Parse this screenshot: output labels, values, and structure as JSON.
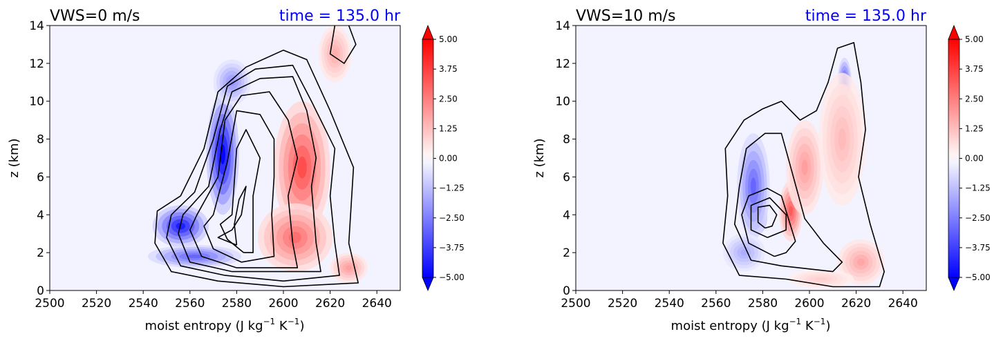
{
  "colorbar": {
    "vmin": -5.0,
    "vmax": 5.0,
    "tick_labels": [
      "5.00",
      "3.75",
      "2.50",
      "1.25",
      "0.00",
      "−1.25",
      "−2.50",
      "−3.75",
      "−5.00"
    ],
    "tick_values": [
      5.0,
      3.75,
      2.5,
      1.25,
      0.0,
      -1.25,
      -2.5,
      -3.75,
      -5.0
    ],
    "extend": "both",
    "colormap": "bwr",
    "colors": {
      "neg": "#0000ff",
      "mid": "#f3f3ff",
      "pos": "#ff0000"
    }
  },
  "chart_data": [
    {
      "type": "contour",
      "title_left": "VWS=0 m/s",
      "title_right": "time = 135.0 hr",
      "title_right_color": "#0000ff",
      "xlabel": "moist entropy (J kg",
      "xlabel_unit_exp1": "−1",
      "xlabel_unit_mid": " K",
      "xlabel_unit_exp2": "−1",
      "xlabel_unit_end": ")",
      "ylabel": "z (km)",
      "xlim": [
        2500,
        2650
      ],
      "ylim": [
        0,
        14
      ],
      "x_ticks": [
        2500,
        2520,
        2540,
        2560,
        2580,
        2600,
        2620,
        2640
      ],
      "y_ticks": [
        0,
        2,
        4,
        6,
        8,
        10,
        12,
        14
      ],
      "features": [
        {
          "sign": "neg",
          "x": 2574,
          "y": 7.2,
          "rx": 7,
          "ry": 3.2,
          "value": -5.0
        },
        {
          "sign": "neg",
          "x": 2556,
          "y": 3.4,
          "rx": 12,
          "ry": 1.1,
          "value": -4.5
        },
        {
          "sign": "neg",
          "x": 2562,
          "y": 1.8,
          "rx": 20,
          "ry": 0.6,
          "value": -3.0
        },
        {
          "sign": "neg",
          "x": 2578,
          "y": 11.0,
          "rx": 8,
          "ry": 1.2,
          "value": -2.0
        },
        {
          "sign": "pos",
          "x": 2608,
          "y": 6.5,
          "rx": 12,
          "ry": 3.5,
          "value": 3.5
        },
        {
          "sign": "pos",
          "x": 2605,
          "y": 2.8,
          "rx": 16,
          "ry": 1.8,
          "value": 2.8
        },
        {
          "sign": "pos",
          "x": 2622,
          "y": 12.5,
          "rx": 7,
          "ry": 1.5,
          "value": 1.5
        },
        {
          "sign": "pos",
          "x": 2628,
          "y": 1.2,
          "rx": 8,
          "ry": 0.8,
          "value": 1.8
        }
      ],
      "contours": [
        [
          [
            2572,
            0.5
          ],
          [
            2552,
            1.0
          ],
          [
            2545,
            2.5
          ],
          [
            2546,
            4.2
          ],
          [
            2556,
            5.0
          ],
          [
            2566,
            7.5
          ],
          [
            2572,
            10.5
          ],
          [
            2584,
            11.8
          ],
          [
            2600,
            12.7
          ],
          [
            2610,
            12.2
          ],
          [
            2620,
            9.5
          ],
          [
            2630,
            6.5
          ],
          [
            2628,
            2.5
          ],
          [
            2632,
            0.4
          ],
          [
            2600,
            0.2
          ],
          [
            2572,
            0.5
          ]
        ],
        [
          [
            2575,
            0.8
          ],
          [
            2556,
            1.3
          ],
          [
            2550,
            2.8
          ],
          [
            2552,
            4.0
          ],
          [
            2562,
            5.2
          ],
          [
            2570,
            8.0
          ],
          [
            2576,
            10.8
          ],
          [
            2588,
            11.7
          ],
          [
            2604,
            11.9
          ],
          [
            2612,
            10.0
          ],
          [
            2622,
            7.5
          ],
          [
            2620,
            5.0
          ],
          [
            2622,
            2.5
          ],
          [
            2624,
            0.8
          ],
          [
            2600,
            0.5
          ],
          [
            2575,
            0.8
          ]
        ],
        [
          [
            2578,
            1.0
          ],
          [
            2560,
            1.5
          ],
          [
            2555,
            3.0
          ],
          [
            2557,
            4.0
          ],
          [
            2568,
            5.5
          ],
          [
            2573,
            8.5
          ],
          [
            2578,
            10.5
          ],
          [
            2590,
            11.2
          ],
          [
            2604,
            11.3
          ],
          [
            2610,
            9.5
          ],
          [
            2614,
            7.0
          ],
          [
            2612,
            5.5
          ],
          [
            2614,
            2.5
          ],
          [
            2616,
            1.0
          ],
          [
            2578,
            1.0
          ]
        ],
        [
          [
            2580,
            1.2
          ],
          [
            2565,
            1.8
          ],
          [
            2560,
            3.2
          ],
          [
            2563,
            4.0
          ],
          [
            2572,
            6.0
          ],
          [
            2575,
            9.0
          ],
          [
            2582,
            10.3
          ],
          [
            2594,
            10.5
          ],
          [
            2602,
            9.0
          ],
          [
            2606,
            7.0
          ],
          [
            2602,
            5.0
          ],
          [
            2604,
            2.5
          ],
          [
            2606,
            1.2
          ],
          [
            2580,
            1.2
          ]
        ],
        [
          [
            2582,
            1.5
          ],
          [
            2570,
            2.2
          ],
          [
            2566,
            3.4
          ],
          [
            2570,
            4.0
          ],
          [
            2576,
            6.8
          ],
          [
            2580,
            9.5
          ],
          [
            2590,
            9.3
          ],
          [
            2596,
            8.0
          ],
          [
            2596,
            6.0
          ],
          [
            2595,
            4.0
          ],
          [
            2596,
            1.8
          ],
          [
            2582,
            1.5
          ]
        ],
        [
          [
            2583,
            2.0
          ],
          [
            2576,
            2.7
          ],
          [
            2573,
            3.5
          ],
          [
            2578,
            4.0
          ],
          [
            2580,
            7.5
          ],
          [
            2584,
            8.5
          ],
          [
            2590,
            7.0
          ],
          [
            2587,
            5.0
          ],
          [
            2587,
            2.0
          ],
          [
            2583,
            2.0
          ]
        ],
        [
          [
            2580,
            2.4
          ],
          [
            2572,
            2.8
          ],
          [
            2578,
            3.2
          ],
          [
            2582,
            4.0
          ],
          [
            2584,
            5.5
          ],
          [
            2581,
            4.8
          ],
          [
            2579,
            3.5
          ],
          [
            2580,
            2.4
          ]
        ],
        [
          [
            2622,
            14.0
          ],
          [
            2620,
            12.5
          ],
          [
            2626,
            12.0
          ],
          [
            2631,
            13.0
          ],
          [
            2628,
            14.0
          ]
        ]
      ]
    },
    {
      "type": "contour",
      "title_left": "VWS=10 m/s",
      "title_right": "time = 135.0 hr",
      "title_right_color": "#0000ff",
      "xlabel": "moist entropy (J kg",
      "xlabel_unit_exp1": "−1",
      "xlabel_unit_mid": " K",
      "xlabel_unit_exp2": "−1",
      "xlabel_unit_end": ")",
      "ylabel": "z (km)",
      "xlim": [
        2500,
        2650
      ],
      "ylim": [
        0,
        14
      ],
      "x_ticks": [
        2500,
        2520,
        2540,
        2560,
        2580,
        2600,
        2620,
        2640
      ],
      "y_ticks": [
        0,
        2,
        4,
        6,
        8,
        10,
        12,
        14
      ],
      "features": [
        {
          "sign": "neg",
          "x": 2577,
          "y": 3.9,
          "rx": 5,
          "ry": 1.0,
          "value": -5.0
        },
        {
          "sign": "neg",
          "x": 2576,
          "y": 5.5,
          "rx": 7,
          "ry": 2.8,
          "value": -3.0
        },
        {
          "sign": "neg",
          "x": 2572,
          "y": 2.0,
          "rx": 9,
          "ry": 1.0,
          "value": -1.5
        },
        {
          "sign": "neg",
          "x": 2615,
          "y": 11.0,
          "rx": 3,
          "ry": 1.3,
          "value": -3.5
        },
        {
          "sign": "pos",
          "x": 2592,
          "y": 4.2,
          "rx": 5,
          "ry": 1.6,
          "value": 3.2
        },
        {
          "sign": "pos",
          "x": 2598,
          "y": 6.5,
          "rx": 8,
          "ry": 2.5,
          "value": 1.8
        },
        {
          "sign": "pos",
          "x": 2614,
          "y": 8.0,
          "rx": 10,
          "ry": 3.5,
          "value": 1.2
        },
        {
          "sign": "pos",
          "x": 2622,
          "y": 1.5,
          "rx": 10,
          "ry": 1.2,
          "value": 1.6
        },
        {
          "sign": "pos",
          "x": 2605,
          "y": 0.6,
          "rx": 14,
          "ry": 0.5,
          "value": 0.8
        }
      ],
      "contours": [
        [
          [
            2590,
            0.6
          ],
          [
            2570,
            0.8
          ],
          [
            2563,
            2.5
          ],
          [
            2565,
            5.0
          ],
          [
            2564,
            7.5
          ],
          [
            2572,
            9.0
          ],
          [
            2580,
            9.6
          ],
          [
            2588,
            10.0
          ],
          [
            2596,
            9.0
          ],
          [
            2603,
            9.5
          ],
          [
            2608,
            11.0
          ],
          [
            2612,
            12.8
          ],
          [
            2619,
            13.1
          ],
          [
            2622,
            11.0
          ],
          [
            2624,
            8.5
          ],
          [
            2621,
            6.0
          ],
          [
            2626,
            3.5
          ],
          [
            2632,
            1.0
          ],
          [
            2630,
            0.2
          ],
          [
            2610,
            0.2
          ],
          [
            2590,
            0.6
          ]
        ],
        [
          [
            2588,
            1.3
          ],
          [
            2575,
            1.6
          ],
          [
            2568,
            3.5
          ],
          [
            2570,
            5.5
          ],
          [
            2573,
            7.5
          ],
          [
            2581,
            8.3
          ],
          [
            2588,
            8.3
          ],
          [
            2592,
            6.5
          ],
          [
            2598,
            3.8
          ],
          [
            2606,
            2.5
          ],
          [
            2614,
            1.5
          ],
          [
            2610,
            1.0
          ],
          [
            2588,
            1.3
          ]
        ],
        [
          [
            2585,
            1.8
          ],
          [
            2574,
            2.5
          ],
          [
            2571,
            4.0
          ],
          [
            2574,
            5.0
          ],
          [
            2582,
            5.4
          ],
          [
            2588,
            5.0
          ],
          [
            2594,
            2.6
          ],
          [
            2590,
            2.0
          ],
          [
            2585,
            1.8
          ]
        ],
        [
          [
            2582,
            2.8
          ],
          [
            2575,
            3.2
          ],
          [
            2575,
            4.5
          ],
          [
            2583,
            4.9
          ],
          [
            2590,
            4.0
          ],
          [
            2590,
            3.2
          ],
          [
            2582,
            2.8
          ]
        ],
        [
          [
            2581,
            3.3
          ],
          [
            2578,
            3.6
          ],
          [
            2578,
            4.4
          ],
          [
            2583,
            4.5
          ],
          [
            2586,
            4.0
          ],
          [
            2584,
            3.4
          ],
          [
            2581,
            3.3
          ]
        ]
      ]
    }
  ]
}
